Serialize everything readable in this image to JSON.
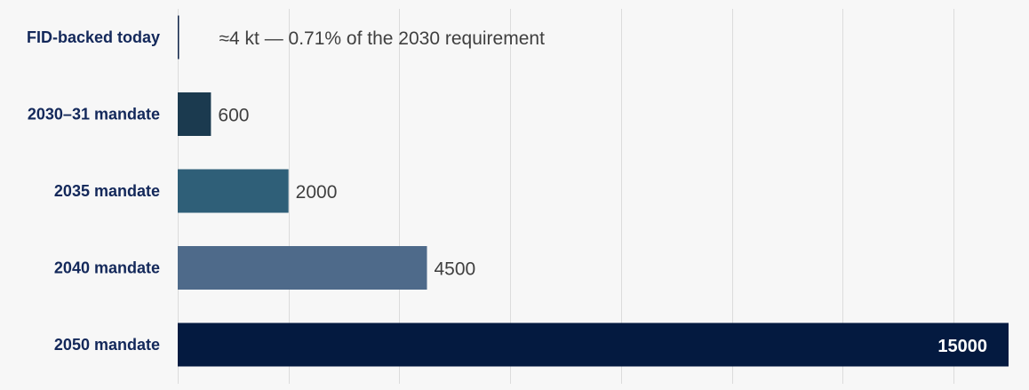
{
  "chart_data": {
    "type": "bar",
    "orientation": "horizontal",
    "categories": [
      "FID-backed today",
      "2030–31 mandate",
      "2035 mandate",
      "2040 mandate",
      "2050 mandate"
    ],
    "values": [
      4,
      600,
      2000,
      4500,
      15000
    ],
    "value_labels": [
      "≈4 kt — 0.71% of the 2030 requirement",
      "600",
      "2000",
      "4500",
      "15000"
    ],
    "colors": [
      "#0e2247",
      "#1b3a4f",
      "#2f5f78",
      "#4e6a8a",
      "#041a40"
    ],
    "title": "",
    "xlabel": "",
    "ylabel": "",
    "xlim": [
      0,
      15000
    ],
    "grid": true,
    "legend": "none"
  }
}
